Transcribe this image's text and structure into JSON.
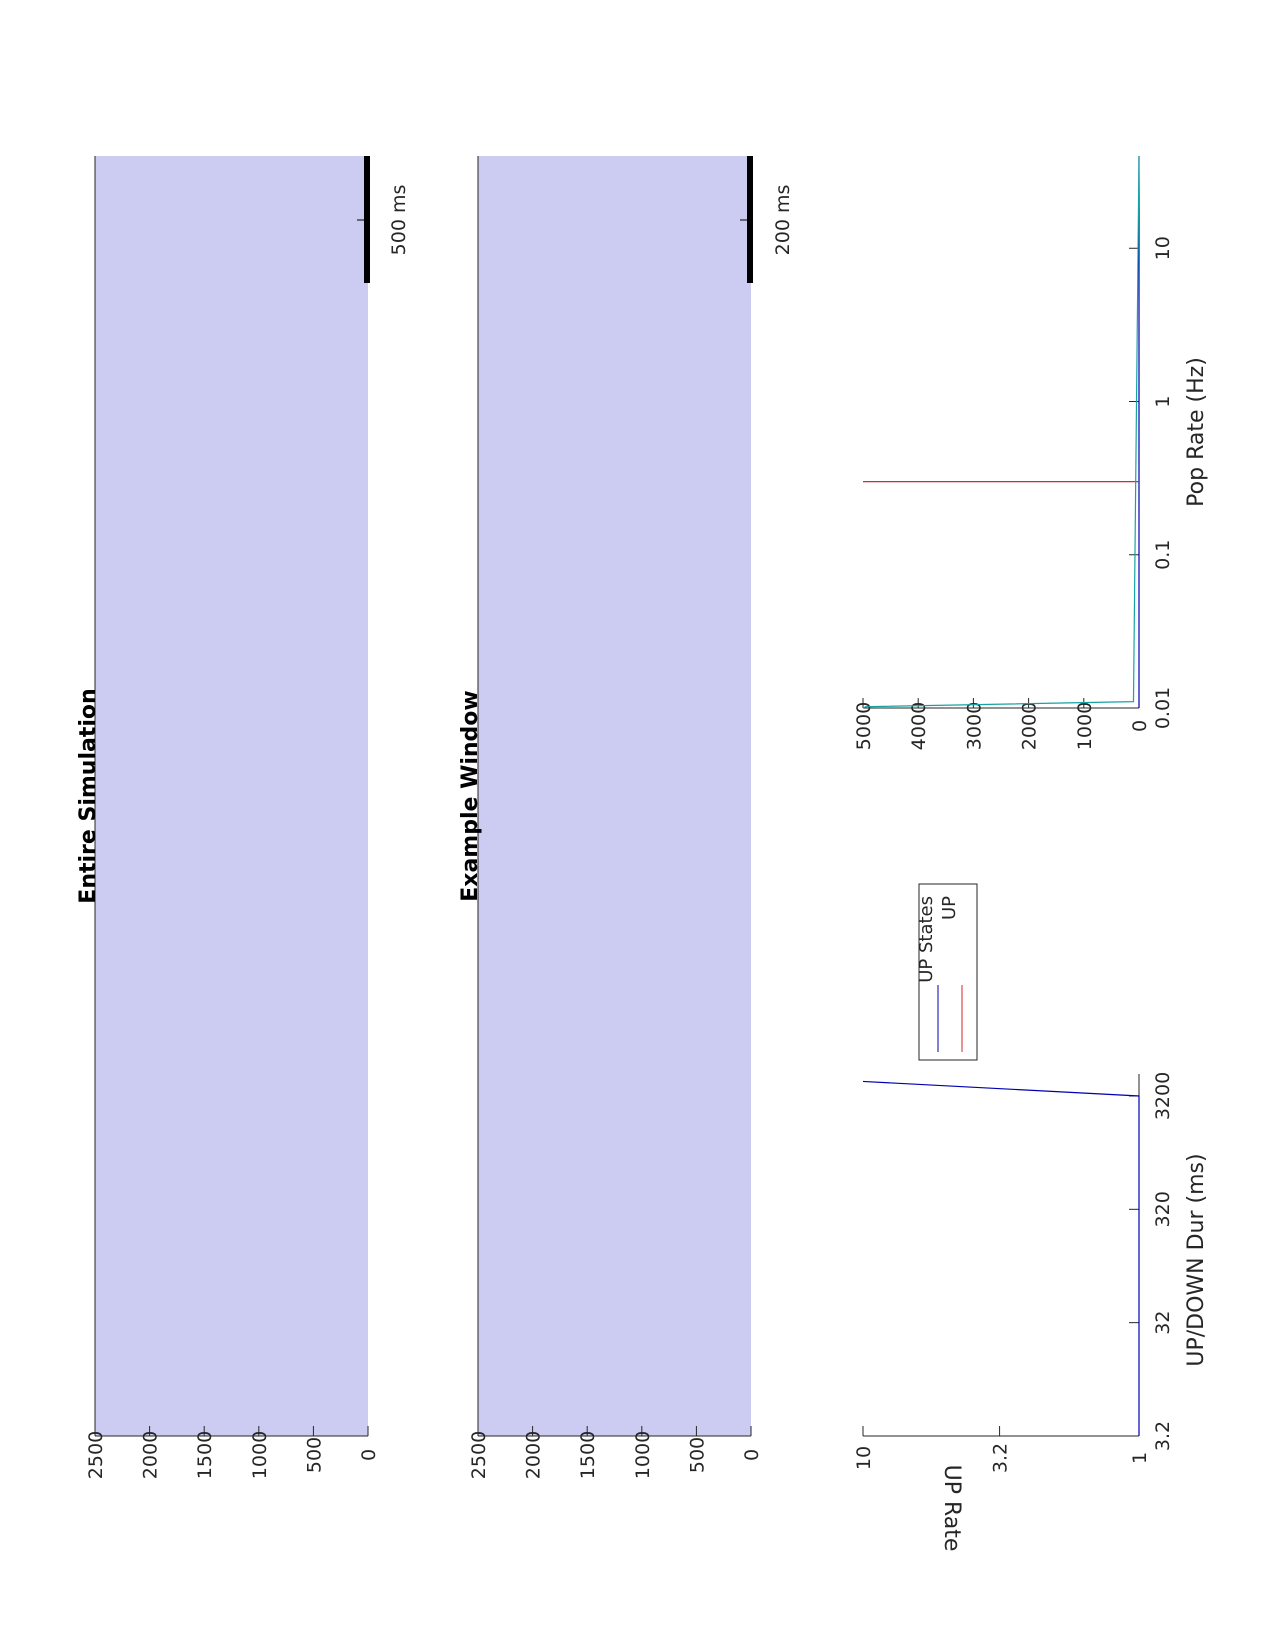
{
  "chart_data": [
    {
      "type": "area",
      "panel": "raster-entire",
      "title": "Entire Simulation",
      "ylim": [
        0,
        2500
      ],
      "yticks": [
        "0",
        "500",
        "1000",
        "1500",
        "2000",
        "2500"
      ],
      "fill_color": "#ccccf2",
      "scalebar_label": "500 ms"
    },
    {
      "type": "area",
      "panel": "raster-window",
      "title": "Example Window",
      "ylim": [
        0,
        2500
      ],
      "yticks": [
        "0",
        "500",
        "1000",
        "1500",
        "2000",
        "2500"
      ],
      "fill_color": "#ccccf2",
      "scalebar_label": "200 ms"
    },
    {
      "type": "line",
      "panel": "updown-duration",
      "xlabel": "UP/DOWN Dur (ms)",
      "ylabel": "UP Rate",
      "xscale": "log",
      "yscale": "log",
      "xlim": [
        3.2,
        5000
      ],
      "ylim": [
        1,
        10
      ],
      "xticks": [
        "3.2",
        "32",
        "320",
        "3200"
      ],
      "yticks": [
        "1",
        "3.2",
        "10"
      ],
      "series": [
        {
          "name": "UP States",
          "color": "#0000b0",
          "x": [
            3.2,
            3200,
            4300,
            3200,
            3000
          ],
          "y": [
            1,
            1,
            10,
            1,
            1
          ]
        },
        {
          "name": "UP",
          "color": "#d62728",
          "x": [],
          "y": []
        }
      ],
      "legend": [
        "UP States",
        "UP"
      ]
    },
    {
      "type": "line",
      "panel": "pop-rate",
      "xlabel": "Pop Rate (Hz)",
      "xscale": "log",
      "xlim": [
        0.01,
        40
      ],
      "ylim": [
        0,
        5000
      ],
      "xticks": [
        "0.01",
        "0.1",
        "1",
        "10"
      ],
      "yticks": [
        "0",
        "1000",
        "2000",
        "3000",
        "4000",
        "5000"
      ],
      "series": [
        {
          "color": "#0000b0",
          "x": [
            0.01,
            0.011,
            40
          ],
          "y": [
            0,
            0,
            0
          ]
        },
        {
          "color": "#d62728",
          "x": [
            0.3,
            0.3
          ],
          "y": [
            0,
            5000
          ]
        },
        {
          "color": "#17a2a2",
          "x": [
            0.01,
            0.0102,
            0.011,
            40
          ],
          "y": [
            5000,
            4950,
            100,
            0
          ]
        }
      ]
    }
  ]
}
